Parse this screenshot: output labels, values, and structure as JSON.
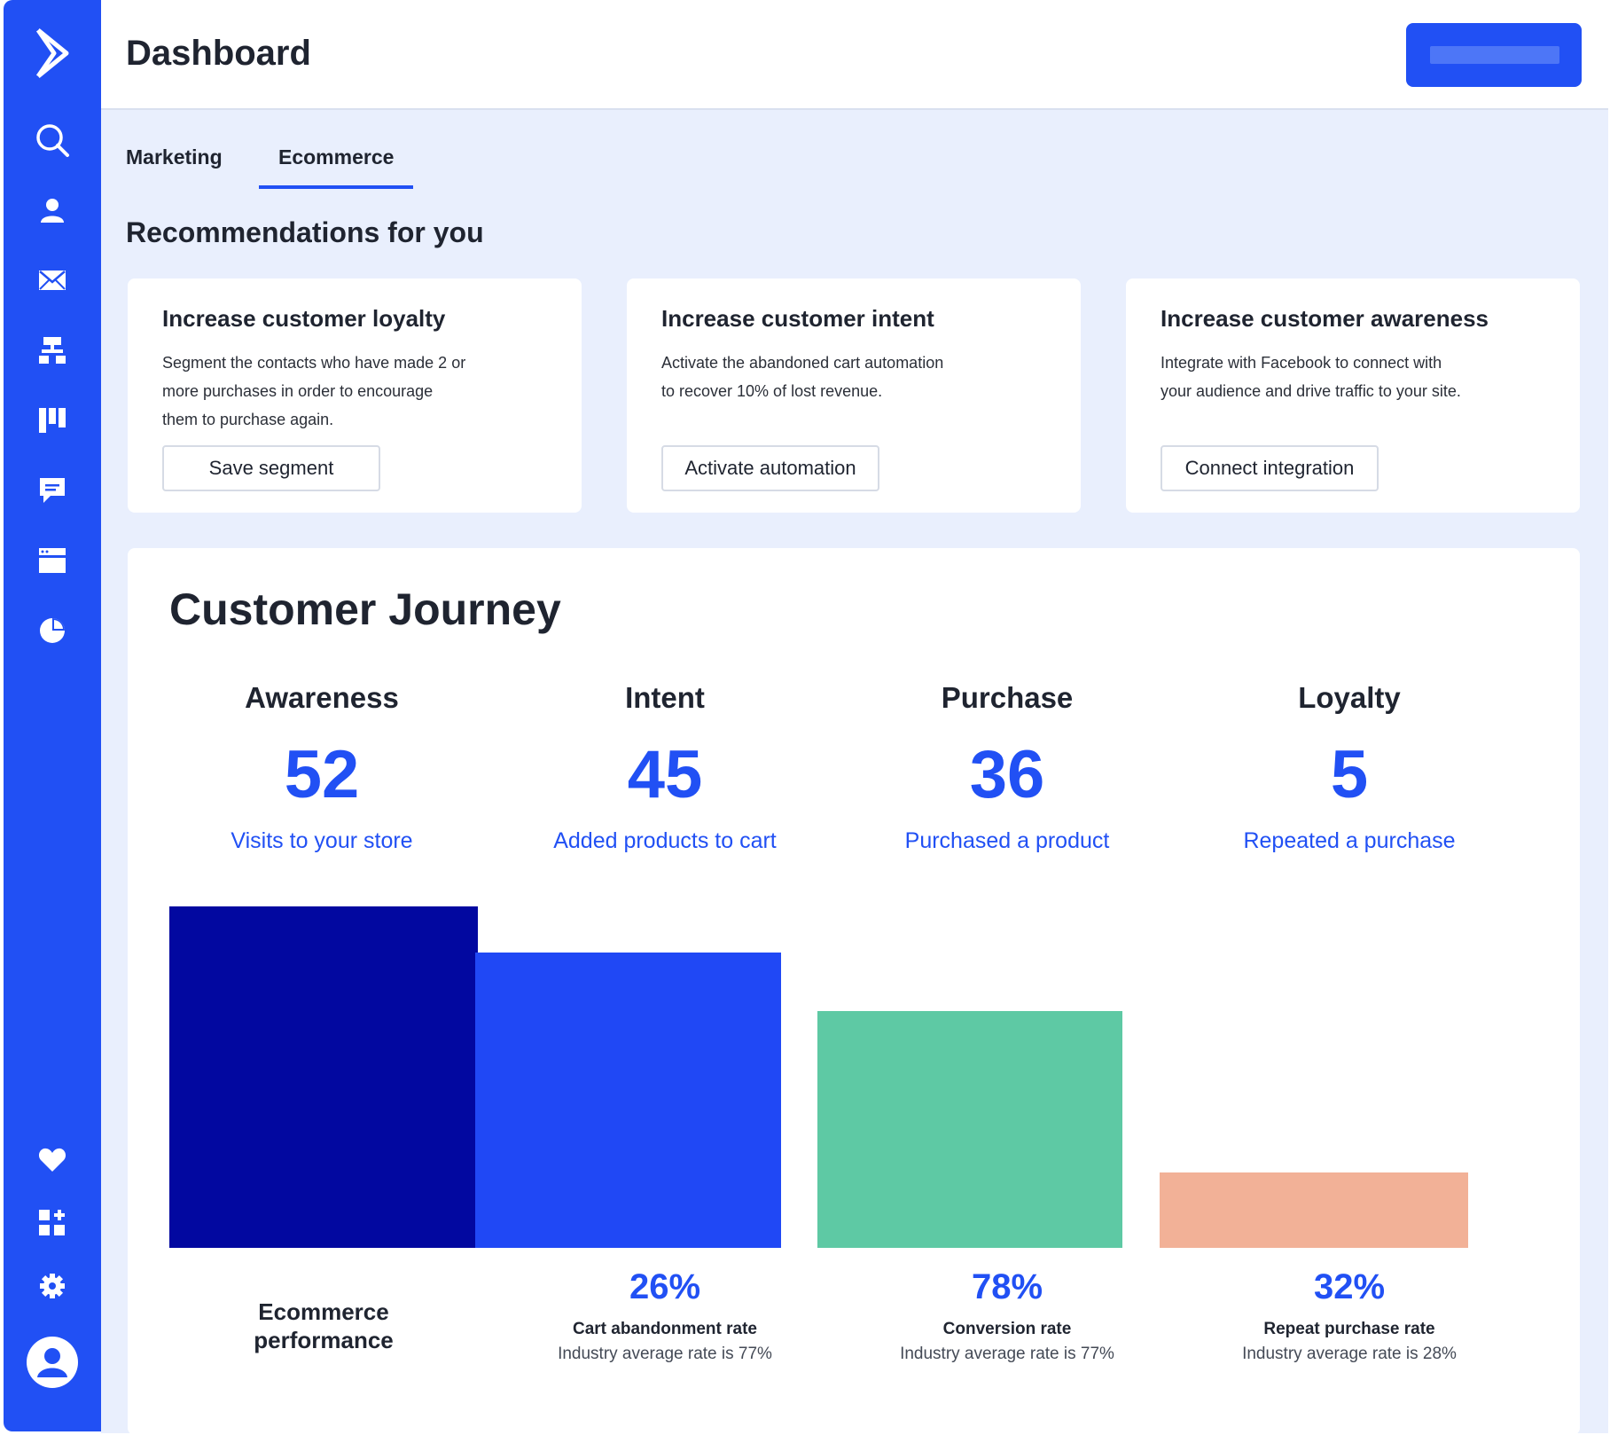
{
  "header": {
    "title": "Dashboard"
  },
  "tabs": [
    {
      "label": "Marketing",
      "active": false
    },
    {
      "label": "Ecommerce",
      "active": true
    }
  ],
  "recommendations": {
    "title": "Recommendations for you",
    "cards": [
      {
        "title": "Increase customer loyalty",
        "lines": [
          "Segment the contacts who have made 2 or",
          "more purchases in order to encourage",
          "them to purchase again."
        ],
        "button": "Save segment"
      },
      {
        "title": "Increase customer intent",
        "lines": [
          "Activate the abandoned cart automation",
          "to recover 10% of lost revenue."
        ],
        "button": "Activate automation"
      },
      {
        "title": "Increase customer awareness",
        "lines": [
          "Integrate with Facebook to connect with",
          "your audience and drive traffic to your site."
        ],
        "button": "Connect integration"
      }
    ]
  },
  "journey": {
    "title": "Customer Journey",
    "stages": [
      {
        "name": "Awareness",
        "value": "52",
        "desc": "Visits to your store"
      },
      {
        "name": "Intent",
        "value": "45",
        "desc": "Added products to cart"
      },
      {
        "name": "Purchase",
        "value": "36",
        "desc": "Purchased a product"
      },
      {
        "name": "Loyalty",
        "value": "5",
        "desc": "Repeated a purchase"
      }
    ],
    "performance_label_lines": [
      "Ecommerce",
      "performance"
    ],
    "metrics": [
      {
        "pct": "26%",
        "label": "Cart abandonment rate",
        "note": "Industry average rate is 77%"
      },
      {
        "pct": "78%",
        "label": "Conversion rate",
        "note": "Industry average rate is 77%"
      },
      {
        "pct": "32%",
        "label": "Repeat purchase rate",
        "note": "Industry average rate is 28%"
      }
    ]
  },
  "chart_data": {
    "type": "bar",
    "categories": [
      "Awareness",
      "Intent",
      "Purchase",
      "Loyalty"
    ],
    "values": [
      52,
      45,
      36,
      5
    ],
    "colors": [
      "#0208a0",
      "#2048f5",
      "#5ec9a4",
      "#f2b197"
    ]
  },
  "sidebar": {
    "top_icons": [
      "logo-chevron-icon",
      "search-icon",
      "contacts-icon",
      "mail-icon",
      "automation-icon",
      "deals-icon",
      "conversations-icon",
      "website-icon",
      "reports-icon"
    ],
    "bottom_icons": [
      "heart-icon",
      "apps-icon",
      "gear-icon",
      "avatar-icon"
    ]
  },
  "colors": {
    "accent": "#2150f4",
    "background": "#e9effd"
  }
}
